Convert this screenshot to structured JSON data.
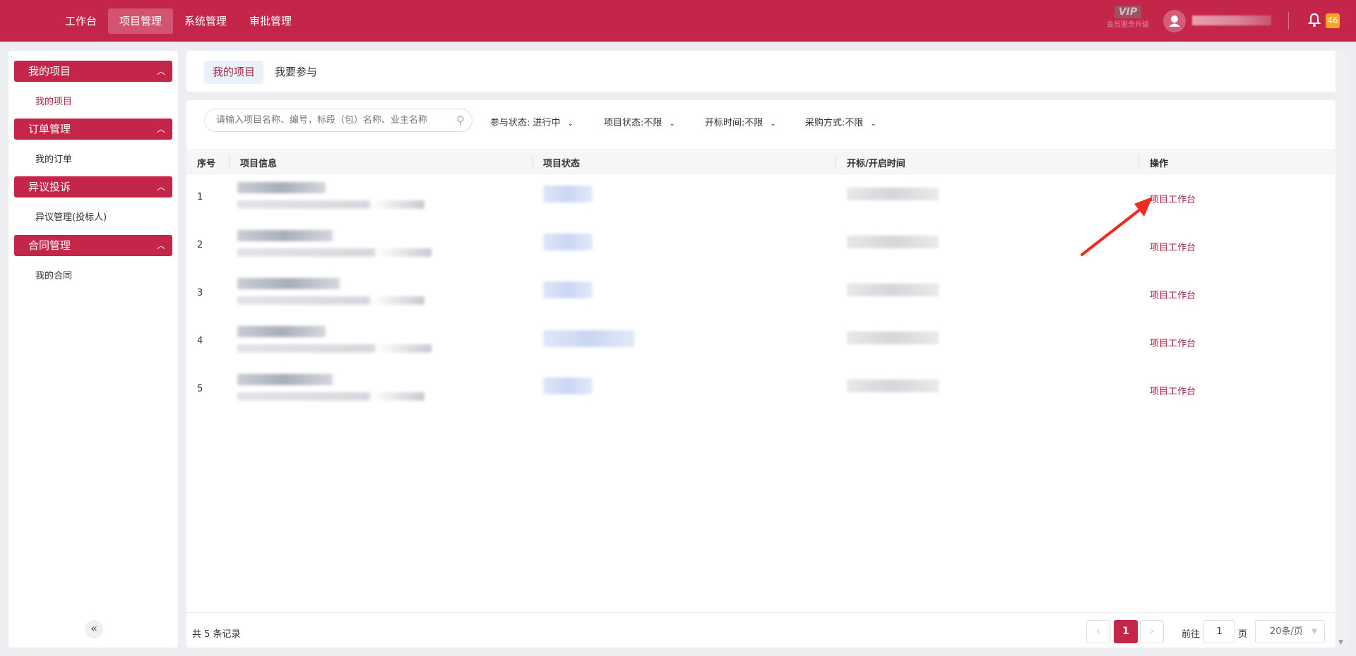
{
  "colors": {
    "brand": "#c4264a",
    "badge": "#f6a623"
  },
  "header": {
    "nav": [
      {
        "label": "工作台"
      },
      {
        "label": "项目管理",
        "active": true
      },
      {
        "label": "系统管理"
      },
      {
        "label": "审批管理"
      }
    ],
    "vip_badge": "VIP",
    "vip_label": "会员服务升级",
    "notification_count": "46",
    "icons": {
      "avatar": "user-icon",
      "bell": "bell-icon"
    }
  },
  "sidebar": {
    "groups": [
      {
        "title": "我的项目",
        "items": [
          {
            "label": "我的项目",
            "active": true
          }
        ]
      },
      {
        "title": "订单管理",
        "items": [
          {
            "label": "我的订单"
          }
        ]
      },
      {
        "title": "异议投诉",
        "items": [
          {
            "label": "异议管理(投标人)"
          }
        ]
      },
      {
        "title": "合同管理",
        "items": [
          {
            "label": "我的合同"
          }
        ]
      }
    ],
    "collapse": "«"
  },
  "tabs": [
    {
      "label": "我的项目",
      "active": true
    },
    {
      "label": "我要参与"
    }
  ],
  "filters": {
    "search_placeholder": "请输入项目名称、编号，标段（包）名称、业主名称",
    "items": [
      {
        "label": "参与状态: 进行中"
      },
      {
        "label": "项目状态:不限"
      },
      {
        "label": "开标时间:不限"
      },
      {
        "label": "采购方式:不限"
      }
    ]
  },
  "table": {
    "columns": [
      "序号",
      "项目信息",
      "项目状态",
      "开标/开启时间",
      "操作"
    ],
    "rows": [
      {
        "index": "1",
        "action": "项目工作台"
      },
      {
        "index": "2",
        "action": "项目工作台"
      },
      {
        "index": "3",
        "action": "项目工作台"
      },
      {
        "index": "4",
        "action": "项目工作台"
      },
      {
        "index": "5",
        "action": "项目工作台"
      }
    ]
  },
  "pagination": {
    "total": "共 5 条记录",
    "current": "1",
    "goto_label": "前往",
    "goto_value": "1",
    "page_unit": "页",
    "page_size": "20条/页"
  }
}
